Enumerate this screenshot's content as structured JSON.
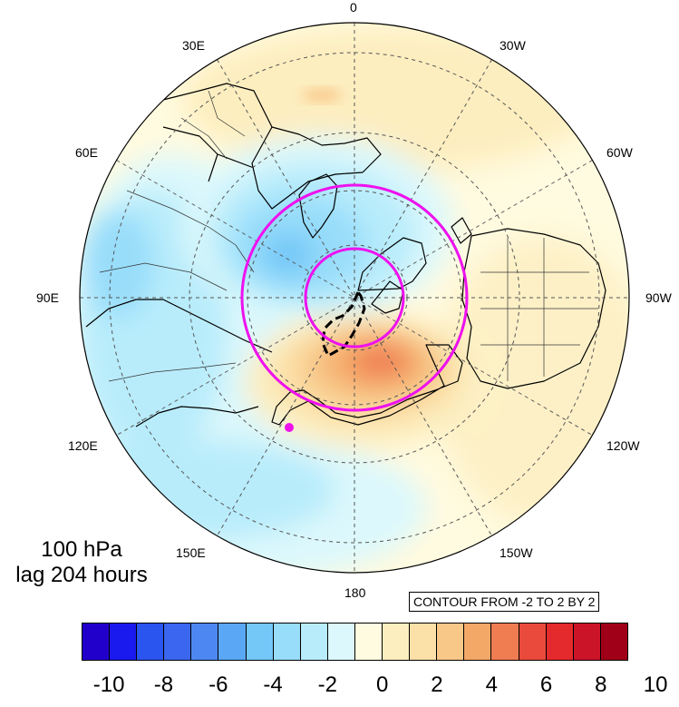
{
  "map": {
    "projection": "north polar stereographic",
    "longitude_labels": [
      {
        "text": "0",
        "lon": 0
      },
      {
        "text": "30W",
        "lon": -30
      },
      {
        "text": "60W",
        "lon": -60
      },
      {
        "text": "90W",
        "lon": -90
      },
      {
        "text": "120W",
        "lon": -120
      },
      {
        "text": "150W",
        "lon": -150
      },
      {
        "text": "180",
        "lon": 180
      },
      {
        "text": "150E",
        "lon": 150
      },
      {
        "text": "120E",
        "lon": 120
      },
      {
        "text": "90E",
        "lon": 90
      },
      {
        "text": "60E",
        "lon": 60
      },
      {
        "text": "30E",
        "lon": 30
      }
    ],
    "marker_color": "#ee11ee"
  },
  "info": {
    "level": "100 hPa",
    "lag": "lag 204 hours"
  },
  "contour_note": "CONTOUR FROM -2 TO 2 BY 2",
  "colorbar": {
    "colors": [
      "#2200cc",
      "#1a1aee",
      "#2a55ee",
      "#3a66f0",
      "#4d88f2",
      "#5aa8f5",
      "#74c8f8",
      "#98ddfa",
      "#b8ecfb",
      "#dcf8fc",
      "#fffbe0",
      "#fdeec0",
      "#fbe0a8",
      "#f8c888",
      "#f4a868",
      "#f07c52",
      "#ea4a3c",
      "#e42a2c",
      "#cc1428",
      "#a00018"
    ],
    "tick_labels": [
      "-10",
      "-8",
      "-6",
      "-4",
      "-2",
      "0",
      "2",
      "4",
      "6",
      "8",
      "10"
    ]
  }
}
